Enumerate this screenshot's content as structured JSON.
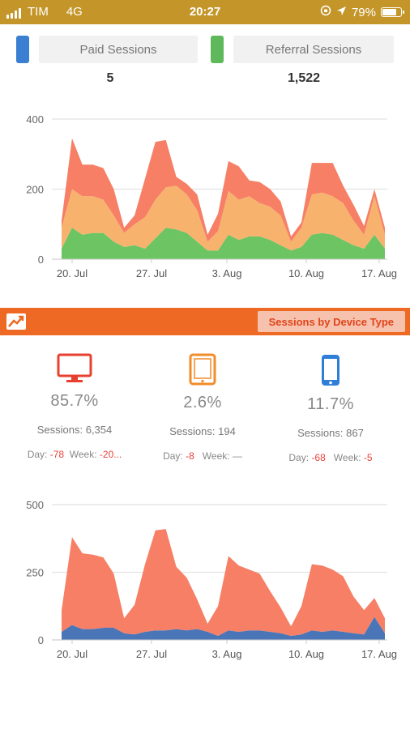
{
  "status_bar": {
    "carrier": "TIM",
    "network": "4G",
    "time": "20:27",
    "battery": "79%",
    "battery_level": 0.79
  },
  "legend": [
    {
      "label": "Paid Sessions",
      "value": "5",
      "color": "#3a7fd1"
    },
    {
      "label": "Referral Sessions",
      "value": "1,522",
      "color": "#5fb85a"
    }
  ],
  "banner": {
    "title": "Sessions by Device Type"
  },
  "devices": [
    {
      "icon": "desktop-icon",
      "color": "#e8402f",
      "percent": "85.7%",
      "sessions_label": "Sessions:",
      "sessions": "6,354",
      "day_label": "Day:",
      "day": "-78",
      "week_label": "Week:",
      "week": "-20..."
    },
    {
      "icon": "tablet-icon",
      "color": "#f08c2a",
      "percent": "2.6%",
      "sessions_label": "Sessions:",
      "sessions": "194",
      "day_label": "Day:",
      "day": "-8",
      "week_label": "Week:",
      "week": "—"
    },
    {
      "icon": "phone-icon",
      "color": "#2f7ed8",
      "percent": "11.7%",
      "sessions_label": "Sessions:",
      "sessions": "867",
      "day_label": "Day:",
      "day": "-68",
      "week_label": "Week:",
      "week": "-5"
    }
  ],
  "chart_data": [
    {
      "type": "area",
      "stacked": true,
      "title": "",
      "xlabel": "",
      "ylabel": "",
      "x_tick_labels": [
        "20. Jul",
        "27. Jul",
        "3. Aug",
        "10. Aug",
        "17. Aug"
      ],
      "y_ticks": [
        0,
        200,
        400
      ],
      "ylim": [
        0,
        400
      ],
      "grid": true,
      "series": [
        {
          "color": "#6cc463",
          "values": [
            30,
            90,
            70,
            75,
            75,
            50,
            35,
            40,
            30,
            60,
            90,
            85,
            75,
            50,
            25,
            25,
            70,
            55,
            65,
            65,
            55,
            40,
            25,
            35,
            70,
            75,
            70,
            55,
            40,
            30,
            70,
            30
          ]
        },
        {
          "color": "#f7b26e",
          "values": [
            60,
            110,
            110,
            105,
            95,
            75,
            40,
            60,
            90,
            110,
            115,
            125,
            110,
            90,
            25,
            55,
            125,
            115,
            115,
            95,
            95,
            85,
            25,
            55,
            115,
            115,
            110,
            105,
            70,
            40,
            110,
            40
          ]
        },
        {
          "color": "#f67f66",
          "values": [
            20,
            145,
            90,
            90,
            90,
            75,
            15,
            25,
            110,
            165,
            135,
            25,
            30,
            45,
            20,
            50,
            85,
            95,
            45,
            60,
            50,
            40,
            15,
            15,
            90,
            85,
            95,
            50,
            45,
            25,
            20,
            20
          ]
        }
      ]
    },
    {
      "type": "area",
      "stacked": true,
      "title": "",
      "xlabel": "",
      "ylabel": "",
      "x_tick_labels": [
        "20. Jul",
        "27. Jul",
        "3. Aug",
        "10. Aug",
        "17. Aug"
      ],
      "y_ticks": [
        0,
        250,
        500
      ],
      "ylim": [
        0,
        500
      ],
      "grid": true,
      "series": [
        {
          "color": "#4a76b8",
          "values": [
            30,
            55,
            40,
            40,
            45,
            45,
            25,
            20,
            30,
            35,
            35,
            40,
            35,
            40,
            30,
            15,
            35,
            30,
            35,
            35,
            30,
            25,
            15,
            20,
            35,
            30,
            35,
            30,
            25,
            20,
            85,
            25
          ]
        },
        {
          "color": "#f67f66",
          "values": [
            80,
            325,
            280,
            275,
            260,
            200,
            55,
            110,
            250,
            370,
            375,
            230,
            195,
            110,
            30,
            110,
            275,
            245,
            225,
            210,
            150,
            95,
            35,
            105,
            245,
            245,
            225,
            205,
            135,
            90,
            70,
            55
          ]
        }
      ]
    }
  ]
}
